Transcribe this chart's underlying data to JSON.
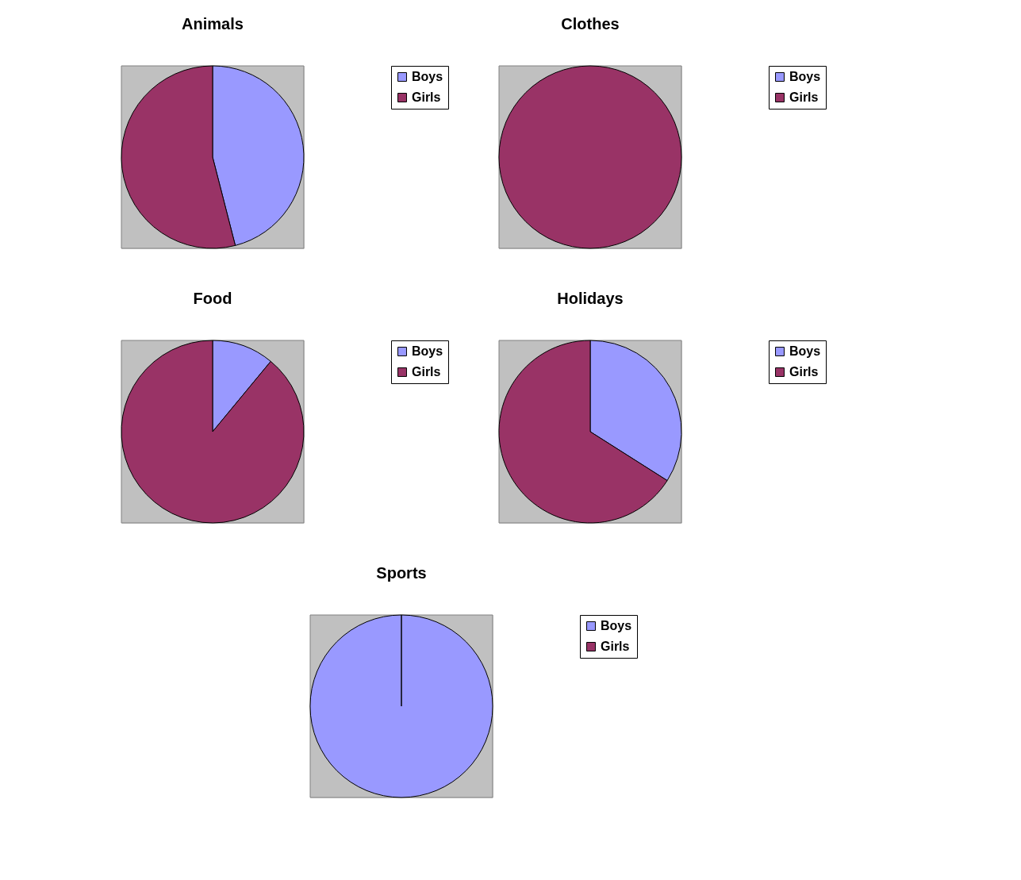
{
  "chart_data": [
    {
      "type": "pie",
      "title": "Animals",
      "categories": [
        "Boys",
        "Girls"
      ],
      "values": [
        46,
        54
      ],
      "colors": [
        "#9999ff",
        "#993366"
      ],
      "legend": "right"
    },
    {
      "type": "pie",
      "title": "Clothes",
      "categories": [
        "Boys",
        "Girls"
      ],
      "values": [
        0,
        100
      ],
      "colors": [
        "#9999ff",
        "#993366"
      ],
      "legend": "right"
    },
    {
      "type": "pie",
      "title": "Food",
      "categories": [
        "Boys",
        "Girls"
      ],
      "values": [
        11,
        89
      ],
      "colors": [
        "#9999ff",
        "#993366"
      ],
      "legend": "right"
    },
    {
      "type": "pie",
      "title": "Holidays",
      "categories": [
        "Boys",
        "Girls"
      ],
      "values": [
        34,
        66
      ],
      "colors": [
        "#9999ff",
        "#993366"
      ],
      "legend": "right"
    },
    {
      "type": "pie",
      "title": "Sports",
      "categories": [
        "Boys",
        "Girls"
      ],
      "values": [
        100,
        0
      ],
      "colors": [
        "#9999ff",
        "#993366"
      ],
      "legend": "right"
    }
  ]
}
